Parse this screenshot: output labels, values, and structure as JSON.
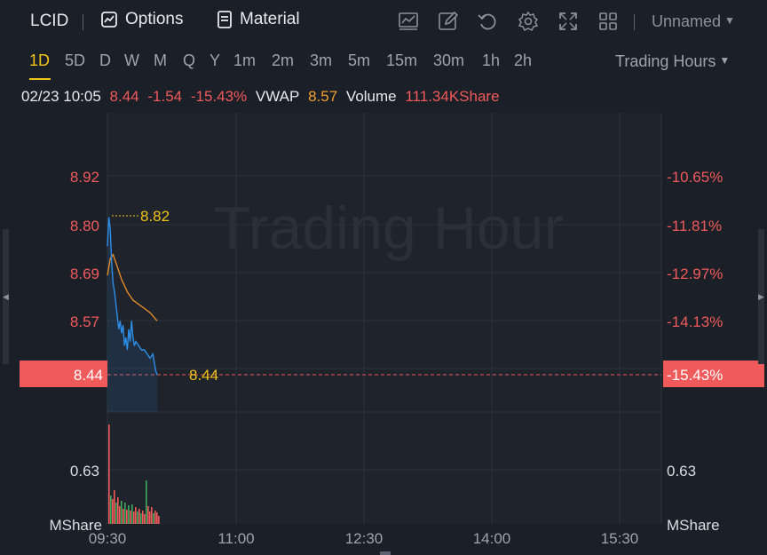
{
  "toolbar": {
    "ticker": "LCID",
    "options_label": "Options",
    "material_label": "Material",
    "layout_name": "Unnamed",
    "icons": [
      "chart-indicator-icon",
      "draw-icon",
      "undo-icon",
      "settings-icon",
      "fullscreen-icon",
      "layout-grid-icon"
    ]
  },
  "periods": {
    "items": [
      "1D",
      "5D",
      "D",
      "W",
      "M",
      "Q",
      "Y",
      "1m",
      "2m",
      "3m",
      "5m",
      "15m",
      "30m",
      "1h",
      "2h"
    ],
    "active": "1D",
    "session_select": "Trading Hours"
  },
  "quote": {
    "datetime": "02/23 10:05",
    "price": "8.44",
    "change": "-1.54",
    "change_pct": "-15.43%",
    "vwap_label": "VWAP",
    "vwap_value": "8.57",
    "volume_label": "Volume",
    "volume_value": "111.34KShare"
  },
  "chart": {
    "watermark": "Trading Hour",
    "left_ticks": [
      "8.92",
      "8.80",
      "8.69",
      "8.57"
    ],
    "right_ticks": [
      "-10.65%",
      "-11.81%",
      "-12.97%",
      "-14.13%"
    ],
    "current_price_tag": "8.44",
    "current_pct_tag": "-15.43%",
    "current_line_label": "8.44",
    "high_label": "8.82",
    "volume_tick": "0.63",
    "volume_unit": "MShare",
    "x_ticks": [
      "09:30",
      "11:00",
      "12:30",
      "14:00",
      "15:30"
    ]
  },
  "colors": {
    "background": "#1b1f27",
    "accent": "#f0c419",
    "down": "#f05a5a",
    "price_line": "#2e8ee6",
    "vwap_line": "#e08a2a",
    "grid": "#2c333e"
  },
  "chart_data": {
    "type": "line",
    "x_range": [
      "09:30",
      "16:00"
    ],
    "price_range": [
      8.44,
      8.92
    ],
    "series": [
      {
        "name": "",
        "x": [
          "09:30",
          "09:31",
          "09:32",
          "09:33",
          "09:34",
          "09:35",
          "09:36",
          "09:37",
          "09:38",
          "09:39",
          "09:40",
          "09:41",
          "09:42",
          "09:43",
          "09:44",
          "09:45",
          "09:46",
          "09:47",
          "09:48",
          "09:49",
          "09:50",
          "09:52",
          "09:54",
          "09:56",
          "09:58",
          "10:00",
          "10:02",
          "10:04",
          "10:05"
        ],
        "values": [
          8.75,
          8.82,
          8.79,
          8.71,
          8.66,
          8.64,
          8.61,
          8.58,
          8.55,
          8.57,
          8.54,
          8.56,
          8.51,
          8.53,
          8.5,
          8.55,
          8.52,
          8.57,
          8.53,
          8.51,
          8.52,
          8.51,
          8.5,
          8.5,
          8.49,
          8.48,
          8.49,
          8.45,
          8.44
        ]
      },
      {
        "name": "VWAP",
        "x": [
          "09:30",
          "09:32",
          "09:34",
          "09:36",
          "09:38",
          "09:40",
          "09:44",
          "09:48",
          "09:52",
          "09:56",
          "10:00",
          "10:05"
        ],
        "values": [
          8.68,
          8.72,
          8.73,
          8.71,
          8.69,
          8.67,
          8.64,
          8.62,
          8.61,
          8.6,
          8.59,
          8.57
        ]
      }
    ]
  }
}
